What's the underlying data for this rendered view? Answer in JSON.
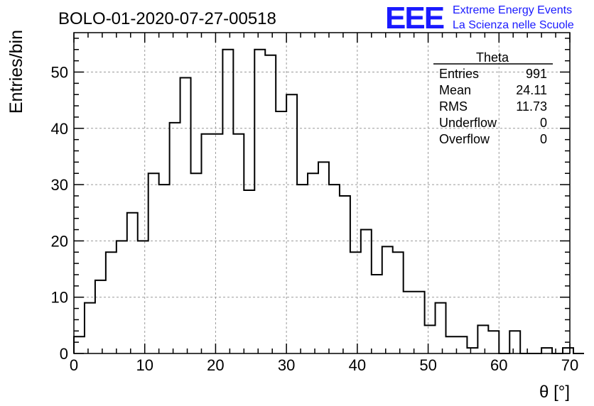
{
  "header": {
    "title": "BOLO-01-2020-07-27-00518",
    "logo_text": "EEE",
    "logo_line1": "Extreme Energy Events",
    "logo_line2": "La Scienza nelle Scuole",
    "logo_color": "#1a1aff"
  },
  "stats": {
    "name": "Theta",
    "rows": [
      {
        "label": "Entries",
        "value": "991"
      },
      {
        "label": "Mean",
        "value": "24.11"
      },
      {
        "label": "RMS",
        "value": "11.73"
      },
      {
        "label": "Underflow",
        "value": "0"
      },
      {
        "label": "Overflow",
        "value": "0"
      }
    ]
  },
  "chart_data": {
    "type": "histogram",
    "title": "BOLO-01-2020-07-27-00518",
    "xlabel": "θ [°]",
    "ylabel": "Entries/bin",
    "xlim": [
      0,
      70
    ],
    "ylim": [
      0,
      57
    ],
    "bin_width": 1.5,
    "bin_start": 0,
    "values": [
      3,
      9,
      13,
      18,
      20,
      25,
      20,
      32,
      30,
      41,
      49,
      32,
      39,
      39,
      54,
      39,
      29,
      54,
      53,
      43,
      46,
      30,
      32,
      34,
      30,
      28,
      18,
      22,
      14,
      19,
      18,
      11,
      11,
      5,
      9,
      3,
      3,
      1,
      5,
      4,
      0,
      4,
      0,
      0,
      1,
      0,
      1,
      0
    ],
    "xticks": [
      0,
      10,
      20,
      30,
      40,
      50,
      60,
      70
    ],
    "yticks": [
      0,
      10,
      20,
      30,
      40,
      50
    ],
    "grid": true,
    "line_color": "#000000"
  }
}
